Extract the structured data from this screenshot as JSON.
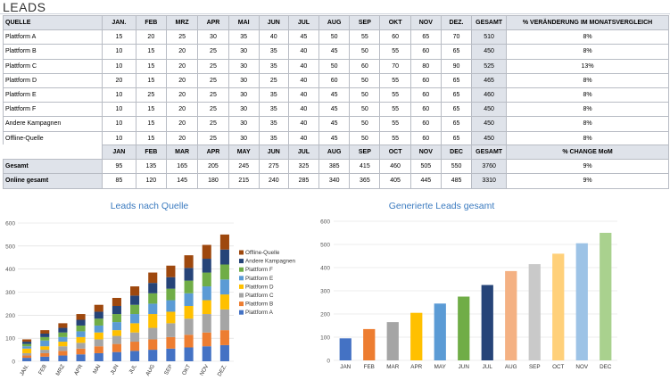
{
  "page_title": "LEADS",
  "table1": {
    "headers": [
      "QUELLE",
      "JAN.",
      "FEB",
      "MRZ",
      "APR",
      "MAI",
      "JUN",
      "JUL",
      "AUG",
      "SEP",
      "OKT",
      "NOV",
      "DEZ.",
      "GESAMT",
      "% VERÄNDERUNG IM MONATSVERGLEICH"
    ],
    "rows": [
      {
        "label": "Plattform A",
        "values": [
          "15",
          "20",
          "25",
          "30",
          "35",
          "40",
          "45",
          "50",
          "55",
          "60",
          "65",
          "70"
        ],
        "total": "510",
        "change": "8%"
      },
      {
        "label": "Plattform B",
        "values": [
          "10",
          "15",
          "20",
          "25",
          "30",
          "35",
          "40",
          "45",
          "50",
          "55",
          "60",
          "65"
        ],
        "total": "450",
        "change": "8%"
      },
      {
        "label": "Plattform C",
        "values": [
          "10",
          "15",
          "20",
          "25",
          "30",
          "35",
          "40",
          "50",
          "60",
          "70",
          "80",
          "90"
        ],
        "total": "525",
        "change": "13%"
      },
      {
        "label": "Plattform D",
        "values": [
          "20",
          "15",
          "20",
          "25",
          "30",
          "25",
          "40",
          "60",
          "50",
          "55",
          "60",
          "65"
        ],
        "total": "465",
        "change": "8%"
      },
      {
        "label": "Plattform E",
        "values": [
          "10",
          "25",
          "20",
          "25",
          "30",
          "35",
          "40",
          "45",
          "50",
          "55",
          "60",
          "65"
        ],
        "total": "460",
        "change": "8%"
      },
      {
        "label": "Plattform F",
        "values": [
          "10",
          "15",
          "20",
          "25",
          "30",
          "35",
          "40",
          "45",
          "50",
          "55",
          "60",
          "65"
        ],
        "total": "450",
        "change": "8%"
      },
      {
        "label": "Andere Kampagnen",
        "values": [
          "10",
          "15",
          "20",
          "25",
          "30",
          "35",
          "40",
          "45",
          "50",
          "55",
          "60",
          "65"
        ],
        "total": "450",
        "change": "8%"
      },
      {
        "label": "Offline-Quelle",
        "values": [
          "10",
          "15",
          "20",
          "25",
          "30",
          "35",
          "40",
          "45",
          "50",
          "55",
          "60",
          "65"
        ],
        "total": "450",
        "change": "8%"
      }
    ]
  },
  "table2": {
    "headers": [
      "",
      "JAN",
      "FEB",
      "MAR",
      "APR",
      "MAY",
      "JUN",
      "JUL",
      "AUG",
      "SEP",
      "OCT",
      "NOV",
      "DEC",
      "GESAMT",
      "% CHANGE MoM"
    ],
    "rows": [
      {
        "label": "Gesamt",
        "values": [
          "95",
          "135",
          "165",
          "205",
          "245",
          "275",
          "325",
          "385",
          "415",
          "460",
          "505",
          "550"
        ],
        "total": "3760",
        "change": "9%"
      },
      {
        "label": "Online gesamt",
        "values": [
          "85",
          "120",
          "145",
          "180",
          "215",
          "240",
          "285",
          "340",
          "365",
          "405",
          "445",
          "485"
        ],
        "total": "3310",
        "change": "9%"
      }
    ]
  },
  "chart_data": [
    {
      "type": "bar",
      "stacked": true,
      "title": "Leads nach Quelle",
      "categories": [
        "JAN.",
        "FEB",
        "MRZ",
        "APR",
        "MAI",
        "JUN",
        "JUL",
        "AUG",
        "SEP",
        "OKT",
        "NOV",
        "DEZ."
      ],
      "ylim": [
        0,
        600
      ],
      "yticks": [
        0,
        100,
        200,
        300,
        400,
        500,
        600
      ],
      "legend_position": "right",
      "series": [
        {
          "name": "Plattform A",
          "color": "#4472c4",
          "values": [
            15,
            20,
            25,
            30,
            35,
            40,
            45,
            50,
            55,
            60,
            65,
            70
          ]
        },
        {
          "name": "Plattform B",
          "color": "#ed7d31",
          "values": [
            10,
            15,
            20,
            25,
            30,
            35,
            40,
            45,
            50,
            55,
            60,
            65
          ]
        },
        {
          "name": "Plattform C",
          "color": "#a5a5a5",
          "values": [
            10,
            15,
            20,
            25,
            30,
            35,
            40,
            50,
            60,
            70,
            80,
            90
          ]
        },
        {
          "name": "Plattform D",
          "color": "#ffc000",
          "values": [
            20,
            15,
            20,
            25,
            30,
            25,
            40,
            60,
            50,
            55,
            60,
            65
          ]
        },
        {
          "name": "Plattform E",
          "color": "#5b9bd5",
          "values": [
            10,
            25,
            20,
            25,
            30,
            35,
            40,
            45,
            50,
            55,
            60,
            65
          ]
        },
        {
          "name": "Plattform F",
          "color": "#70ad47",
          "values": [
            10,
            15,
            20,
            25,
            30,
            35,
            40,
            45,
            50,
            55,
            60,
            65
          ]
        },
        {
          "name": "Andere Kampagnen",
          "color": "#264478",
          "values": [
            10,
            15,
            20,
            25,
            30,
            35,
            40,
            45,
            50,
            55,
            60,
            65
          ]
        },
        {
          "name": "Offline-Quelle",
          "color": "#9e480e",
          "values": [
            10,
            15,
            20,
            25,
            30,
            35,
            40,
            45,
            50,
            55,
            60,
            65
          ]
        }
      ]
    },
    {
      "type": "bar",
      "title": "Generierte Leads gesamt",
      "categories": [
        "JAN",
        "FEB",
        "MAR",
        "APR",
        "MAY",
        "JUN",
        "JUL",
        "AUG",
        "SEP",
        "OCT",
        "NOV",
        "DEC"
      ],
      "values": [
        95,
        135,
        165,
        205,
        245,
        275,
        325,
        385,
        415,
        460,
        505,
        550
      ],
      "colors": [
        "#4472c4",
        "#ed7d31",
        "#a5a5a5",
        "#ffc000",
        "#5b9bd5",
        "#70ad47",
        "#264478",
        "#f4b183",
        "#c9c9c9",
        "#ffd07a",
        "#9dc3e6",
        "#a9d18e"
      ],
      "ylim": [
        0,
        600
      ],
      "yticks": [
        0,
        100,
        200,
        300,
        400,
        500,
        600
      ]
    }
  ]
}
